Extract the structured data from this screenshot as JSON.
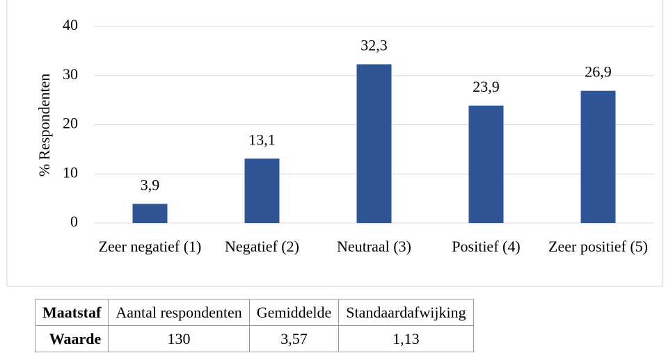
{
  "chart_data": {
    "type": "bar",
    "y_label": "% Respondenten",
    "categories": [
      "Zeer negatief (1)",
      "Negatief (2)",
      "Neutraal (3)",
      "Positief (4)",
      "Zeer positief (5)"
    ],
    "values": [
      3.9,
      13.1,
      32.3,
      23.9,
      26.9
    ],
    "value_labels": [
      "3,9",
      "13,1",
      "32,3",
      "23,9",
      "26,9"
    ],
    "color": "#2f5597",
    "ylim": [
      0,
      40
    ],
    "yticks": [
      0,
      10,
      20,
      30,
      40
    ],
    "grid": true
  },
  "table": {
    "rows": [
      [
        "Maatstaf",
        "Aantal respondenten",
        "Gemiddelde",
        "Standaardafwijking"
      ],
      [
        "Waarde",
        "130",
        "3,57",
        "1,13"
      ]
    ]
  }
}
